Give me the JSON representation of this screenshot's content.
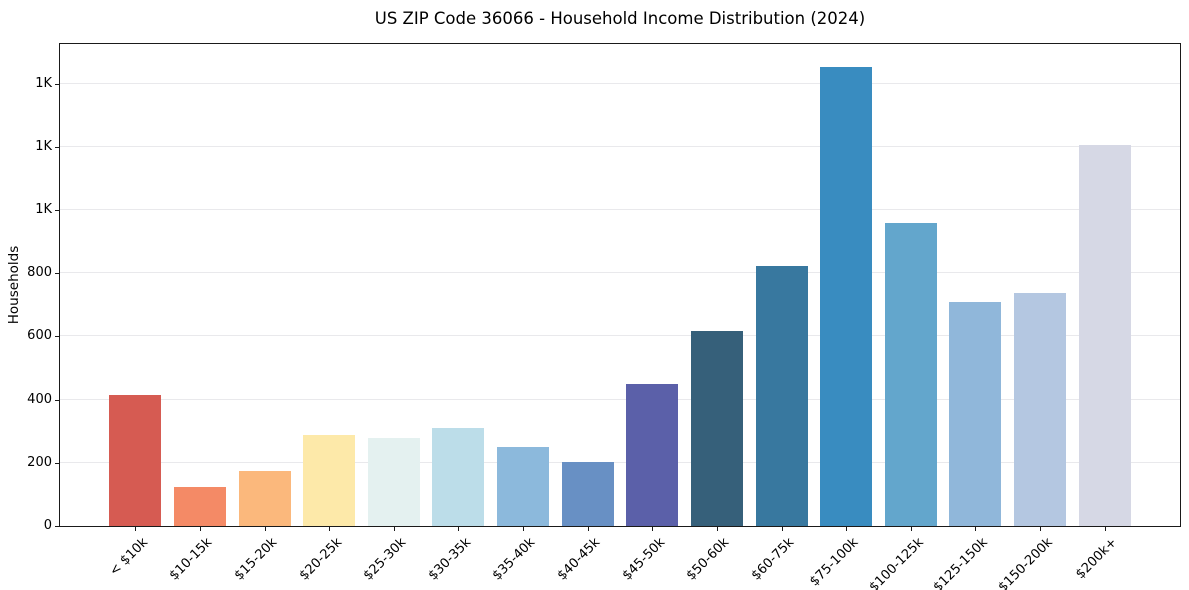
{
  "page": {
    "background_color": "#ffffff",
    "text_color": "#000000",
    "gridline_color": "#e9e9ec",
    "axis_color": "#1a1a1a"
  },
  "chart_data": {
    "type": "bar",
    "title": "US ZIP Code 36066 - Household Income Distribution (2024)",
    "xlabel": "",
    "ylabel": "Households",
    "legend": "none",
    "grid": "horizontal",
    "x_tick_rotation_deg": 45,
    "ylim": [
      0,
      1525
    ],
    "categories": [
      "< $10k",
      "$10-15k",
      "$15-20k",
      "$20-25k",
      "$25-30k",
      "$30-35k",
      "$35-40k",
      "$40-45k",
      "$45-50k",
      "$50-60k",
      "$60-75k",
      "$75-100k",
      "$100-125k",
      "$125-150k",
      "$150-200k",
      "$200k+"
    ],
    "values": [
      415,
      123,
      174,
      288,
      278,
      310,
      250,
      202,
      450,
      618,
      824,
      1452,
      958,
      710,
      738,
      1204
    ],
    "bar_colors": [
      "#d65b52",
      "#f48a66",
      "#fbb87c",
      "#fde9a9",
      "#e4f1f0",
      "#bcdde9",
      "#8cb9dc",
      "#6890c4",
      "#5b60a9",
      "#36607a",
      "#38789f",
      "#398cc0",
      "#63a6cc",
      "#90b7da",
      "#b4c7e1",
      "#d6d8e5"
    ],
    "yticks": [
      {
        "value": 0,
        "label": "0"
      },
      {
        "value": 200,
        "label": "200"
      },
      {
        "value": 400,
        "label": "400"
      },
      {
        "value": 600,
        "label": "600"
      },
      {
        "value": 800,
        "label": "800"
      },
      {
        "value": 1000,
        "label": "1K"
      },
      {
        "value": 1200,
        "label": "1K"
      },
      {
        "value": 1400,
        "label": "1K"
      }
    ]
  }
}
